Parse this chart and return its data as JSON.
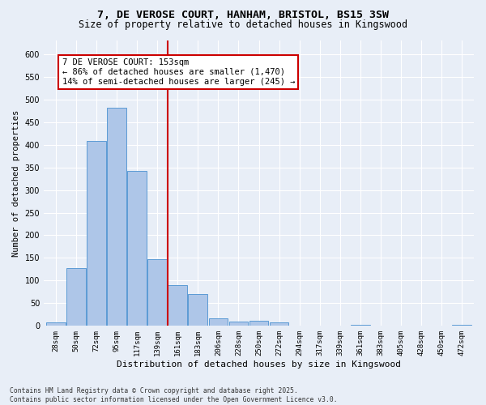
{
  "title_line1": "7, DE VEROSE COURT, HANHAM, BRISTOL, BS15 3SW",
  "title_line2": "Size of property relative to detached houses in Kingswood",
  "xlabel": "Distribution of detached houses by size in Kingswood",
  "ylabel": "Number of detached properties",
  "categories": [
    "28sqm",
    "50sqm",
    "72sqm",
    "95sqm",
    "117sqm",
    "139sqm",
    "161sqm",
    "183sqm",
    "206sqm",
    "228sqm",
    "250sqm",
    "272sqm",
    "294sqm",
    "317sqm",
    "339sqm",
    "361sqm",
    "383sqm",
    "405sqm",
    "428sqm",
    "450sqm",
    "472sqm"
  ],
  "values": [
    8,
    128,
    408,
    482,
    342,
    148,
    90,
    70,
    16,
    10,
    12,
    7,
    0,
    0,
    0,
    3,
    0,
    0,
    0,
    0,
    3
  ],
  "bar_color": "#aec6e8",
  "bar_edge_color": "#5b9bd5",
  "vline_x": 5.5,
  "vline_color": "#cc0000",
  "annotation_text": "7 DE VEROSE COURT: 153sqm\n← 86% of detached houses are smaller (1,470)\n14% of semi-detached houses are larger (245) →",
  "annotation_box_color": "#ffffff",
  "annotation_box_edge": "#cc0000",
  "background_color": "#e8eef7",
  "ylim": [
    0,
    630
  ],
  "yticks": [
    0,
    50,
    100,
    150,
    200,
    250,
    300,
    350,
    400,
    450,
    500,
    550,
    600
  ],
  "footer": "Contains HM Land Registry data © Crown copyright and database right 2025.\nContains public sector information licensed under the Open Government Licence v3.0.",
  "title_fontsize": 9.5,
  "subtitle_fontsize": 8.5,
  "annotation_fontsize": 7.5,
  "ylabel_fontsize": 7.5,
  "xlabel_fontsize": 8,
  "tick_fontsize": 6.5,
  "footer_fontsize": 5.8
}
